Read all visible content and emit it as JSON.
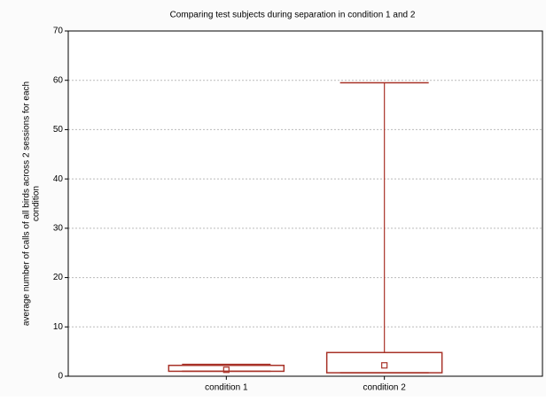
{
  "chart_data": {
    "type": "box",
    "title": "Comparing test subjects during separation in condition 1 and 2",
    "ylabel": [
      "average number of calls of all birds across 2 sessions for each",
      "condition"
    ],
    "categories": [
      "condition 1",
      "condition 2"
    ],
    "boxes": [
      {
        "min": 1.0,
        "q1": 1.0,
        "median": 1.3,
        "q3": 2.2,
        "max": 2.4
      },
      {
        "min": 0.7,
        "q1": 0.7,
        "median": 2.2,
        "q3": 4.8,
        "max": 59.5
      }
    ],
    "color": "#a83228",
    "ylim": [
      0,
      70
    ],
    "yticks": [
      0,
      10,
      20,
      30,
      40,
      50,
      60,
      70
    ],
    "grid": true
  }
}
